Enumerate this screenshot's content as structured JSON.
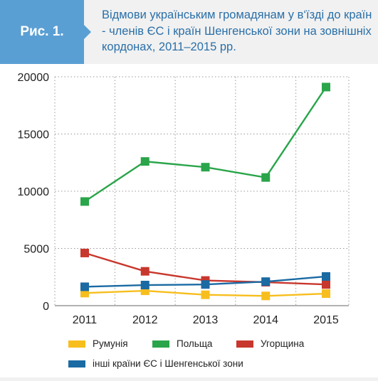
{
  "header": {
    "fig_label": "Рис. 1.",
    "title": "Відмови українським громадянам у в‘їзді до країн - членів ЄС і країн Шенгенської зони на зовнішніх кордонах, 2011–2015 рр."
  },
  "colors": {
    "header_bg": "#f1f1f1",
    "label_bg": "#5a9fd4",
    "title_text": "#2a6fa8",
    "grid": "#999999"
  },
  "chart_data": {
    "type": "line",
    "title": "",
    "xlabel": "",
    "ylabel": "",
    "x": [
      "2011",
      "2012",
      "2013",
      "2014",
      "2015"
    ],
    "ylim": [
      0,
      20000
    ],
    "yticks": [
      0,
      5000,
      10000,
      15000,
      20000
    ],
    "grid": "dotted",
    "legend_position": "bottom",
    "series": [
      {
        "name": "Румунія",
        "color": "#f7be1d",
        "values": [
          1100,
          1300,
          950,
          850,
          1050
        ]
      },
      {
        "name": "Польща",
        "color": "#2aa54a",
        "values": [
          9100,
          12600,
          12100,
          11200,
          19100
        ]
      },
      {
        "name": "Угорщина",
        "color": "#c8372d",
        "values": [
          4600,
          3000,
          2200,
          2050,
          1850
        ]
      },
      {
        "name": "інші країни ЄС і  Шенгенської зони",
        "color": "#1a6aa3",
        "values": [
          1650,
          1800,
          1850,
          2100,
          2550
        ]
      }
    ]
  }
}
